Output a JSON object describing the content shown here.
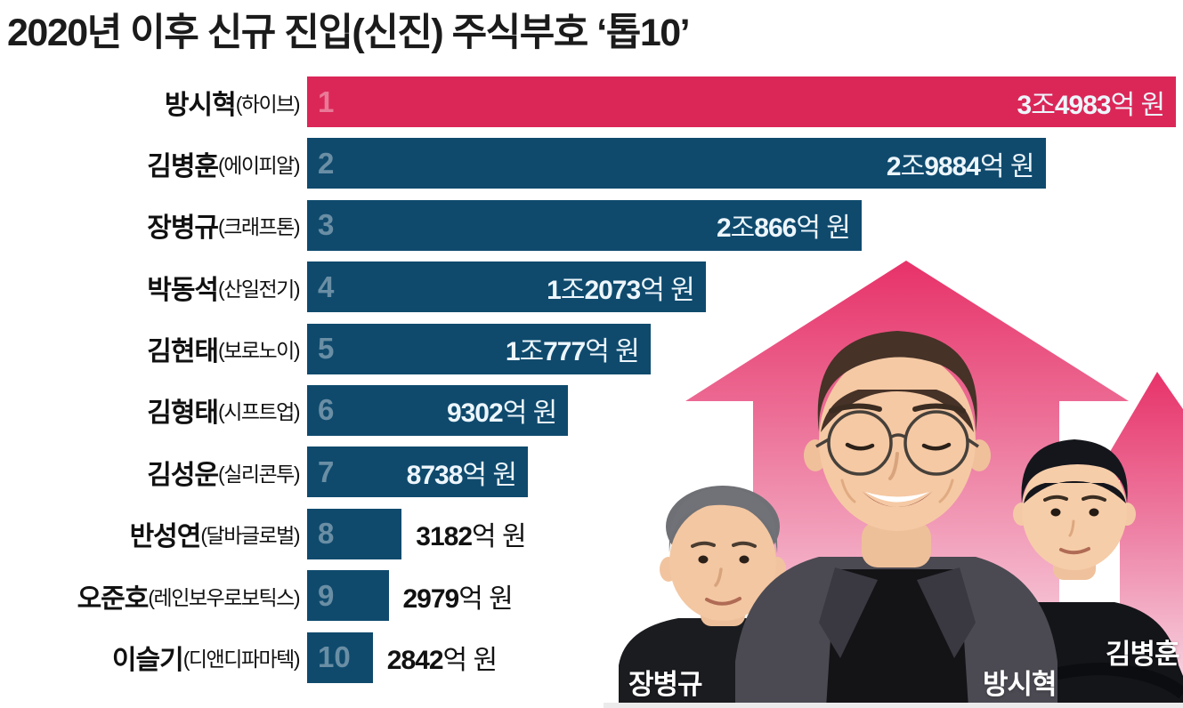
{
  "title": "2020년 이후 신규 진입(신진) 주식부호 ‘톱10’",
  "colors": {
    "highlight_bar": "#DB2758",
    "bar": "#0F4A6D",
    "rank_text": "rgba(255,255,255,0.38)",
    "value_inside": "#EDF6FC",
    "value_outside": "#121212",
    "arrow_top": "#E73168",
    "arrow_bottom": "#FAE8EF",
    "background": "#FFFFFF"
  },
  "chart_data": {
    "type": "bar",
    "orientation": "horizontal",
    "title": "2020년 이후 신규 진입(신진) 주식부호 ‘톱10’",
    "unit": "억 원",
    "value_scale_note": "values in 억 원 (hundred-million KRW)",
    "xlim": [
      0,
      35200
    ],
    "grid": false,
    "legend": "none",
    "rows": [
      {
        "rank": "1",
        "name": "방시혁",
        "company": "(하이브)",
        "value": 34983,
        "value_text": "3조4983억 원",
        "bar_pct": 99.2,
        "value_inside": true,
        "highlight": true
      },
      {
        "rank": "2",
        "name": "김병훈",
        "company": "(에이피알)",
        "value": 29884,
        "value_text": "2조9884억 원",
        "bar_pct": 84.3,
        "value_inside": true,
        "highlight": false
      },
      {
        "rank": "3",
        "name": "장병규",
        "company": "(크래프톤)",
        "value": 20866,
        "value_text": "2조866억 원",
        "bar_pct": 63.3,
        "value_inside": true,
        "highlight": false
      },
      {
        "rank": "4",
        "name": "박동석",
        "company": "(산일전기)",
        "value": 12073,
        "value_text": "1조2073억 원",
        "bar_pct": 45.5,
        "value_inside": true,
        "highlight": false
      },
      {
        "rank": "5",
        "name": "김현태",
        "company": "(보로노이)",
        "value": 10777,
        "value_text": "1조777억 원",
        "bar_pct": 39.2,
        "value_inside": true,
        "highlight": false
      },
      {
        "rank": "6",
        "name": "김형태",
        "company": "(시프트업)",
        "value": 9302,
        "value_text": "9302억 원",
        "bar_pct": 29.8,
        "value_inside": true,
        "highlight": false
      },
      {
        "rank": "7",
        "name": "김성운",
        "company": "(실리콘투)",
        "value": 8738,
        "value_text": "8738억 원",
        "bar_pct": 25.2,
        "value_inside": true,
        "highlight": false
      },
      {
        "rank": "8",
        "name": "반성연",
        "company": "(달바글로벌)",
        "value": 3182,
        "value_text": "3182억 원",
        "bar_pct": 10.8,
        "value_inside": false,
        "highlight": false
      },
      {
        "rank": "9",
        "name": "오준호",
        "company": "(레인보우로보틱스)",
        "value": 2979,
        "value_text": "2979억 원",
        "bar_pct": 9.3,
        "value_inside": false,
        "highlight": false
      },
      {
        "rank": "10",
        "name": "이슬기",
        "company": "(디앤디파마텍)",
        "value": 2842,
        "value_text": "2842억 원",
        "bar_pct": 7.5,
        "value_inside": false,
        "highlight": false
      }
    ]
  },
  "photo_labels": {
    "jang": "장병규",
    "bang": "방시혁",
    "kim": "김병훈"
  }
}
